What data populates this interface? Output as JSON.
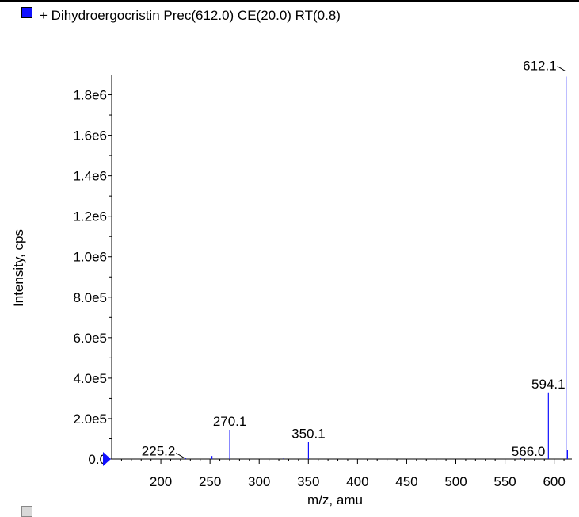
{
  "chart_data": {
    "type": "bar",
    "title": "+ Dihydroergocristin Prec(612.0) CE(20.0) RT(0.8)",
    "xlabel": "m/z, amu",
    "ylabel": "Intensity, cps",
    "xlim": [
      150,
      618
    ],
    "ylim": [
      0,
      1900000
    ],
    "grid": false,
    "legend": "top-left",
    "series_color": "#1010ff",
    "x_ticks": [
      200,
      250,
      300,
      350,
      400,
      450,
      500,
      550,
      600
    ],
    "x_tick_labels": [
      "200",
      "250",
      "300",
      "350",
      "400",
      "450",
      "500",
      "550",
      "600"
    ],
    "y_ticks": [
      0,
      200000,
      400000,
      600000,
      800000,
      1000000,
      1200000,
      1400000,
      1600000,
      1800000
    ],
    "y_tick_labels": [
      "0.0",
      "2.0e5",
      "4.0e5",
      "6.0e5",
      "8.0e5",
      "1.0e6",
      "1.2e6",
      "1.4e6",
      "1.6e6",
      "1.8e6"
    ],
    "peaks": [
      {
        "x": 225.2,
        "y": 6000,
        "label": "225.2"
      },
      {
        "x": 252.0,
        "y": 15000
      },
      {
        "x": 270.1,
        "y": 145000,
        "label": "270.1"
      },
      {
        "x": 325.0,
        "y": 6000
      },
      {
        "x": 350.1,
        "y": 85000,
        "label": "350.1"
      },
      {
        "x": 566.0,
        "y": 8000,
        "label": "566.0"
      },
      {
        "x": 594.1,
        "y": 330000,
        "label": "594.1"
      },
      {
        "x": 612.1,
        "y": 1890000,
        "label": "612.1"
      },
      {
        "x": 613.5,
        "y": 45000
      }
    ]
  }
}
